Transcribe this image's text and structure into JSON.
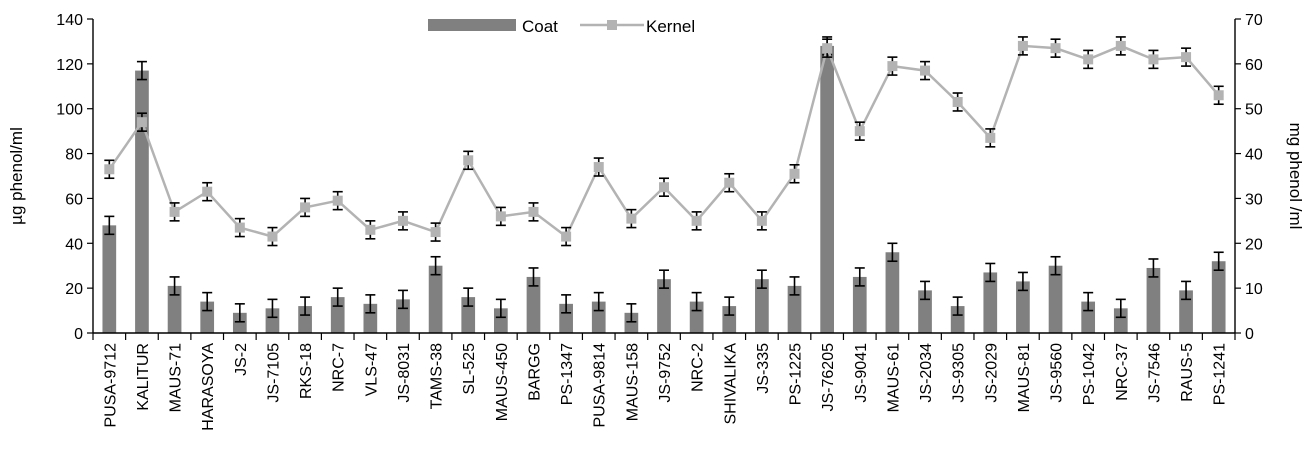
{
  "chart_data": {
    "type": "bar+line",
    "categories": [
      "PUSA-9712",
      "KALITUR",
      "MAUS-71",
      "HARASOYA",
      "JS-2",
      "JS-7105",
      "RKS-18",
      "NRC-7",
      "VLS-47",
      "JS-8031",
      "TAMS-38",
      "SL-525",
      "MAUS-450",
      "BARGG",
      "PS-1347",
      "PUSA-9814",
      "MAUS-158",
      "JS-9752",
      "NRC-2",
      "SHIVALIKA",
      "JS-335",
      "PS-1225",
      "JS-76205",
      "JS-9041",
      "MAUS-61",
      "JS-2034",
      "JS-9305",
      "JS-2029",
      "MAUS-81",
      "JS-9560",
      "PS-1042",
      "NRC-37",
      "JS-7546",
      "RAUS-5",
      "PS-1241"
    ],
    "series": [
      {
        "name": "Coat",
        "type": "bar",
        "axis": "left",
        "color": "#808080",
        "values": [
          48,
          117,
          21,
          14,
          9,
          11,
          12,
          16,
          13,
          15,
          30,
          16,
          11,
          25,
          13,
          14,
          9,
          24,
          14,
          12,
          24,
          21,
          128,
          25,
          36,
          19,
          12,
          27,
          23,
          30,
          14,
          11,
          29,
          19,
          32
        ],
        "errors": [
          4,
          4,
          4,
          4,
          4,
          4,
          4,
          4,
          4,
          4,
          4,
          4,
          4,
          4,
          4,
          4,
          4,
          4,
          4,
          4,
          4,
          4,
          4,
          4,
          4,
          4,
          4,
          4,
          4,
          4,
          4,
          4,
          4,
          4,
          4
        ]
      },
      {
        "name": "Kernel",
        "type": "line",
        "axis": "right",
        "color": "#b3b3b3",
        "marker": "square",
        "values": [
          36.5,
          47,
          27,
          31.5,
          23.5,
          21.5,
          28,
          29.5,
          23,
          25,
          22.5,
          38.5,
          26,
          27,
          21.5,
          37,
          25.5,
          32.5,
          25,
          33.5,
          25,
          35.5,
          63.5,
          45,
          59.5,
          58.5,
          51.5,
          43.5,
          64,
          63.5,
          61,
          64,
          61,
          61.5,
          53
        ],
        "errors": [
          2,
          2,
          2,
          2,
          2,
          2,
          2,
          2,
          2,
          2,
          2,
          2,
          2,
          2,
          2,
          2,
          2,
          2,
          2,
          2,
          2,
          2,
          2,
          2,
          2,
          2,
          2,
          2,
          2,
          2,
          2,
          2,
          2,
          2,
          2
        ]
      }
    ],
    "ylabel_left": "µg phenol/ml",
    "ylabel_right": "mg phenol /ml",
    "ylim_left": [
      0,
      140
    ],
    "ylim_right": [
      0,
      70
    ],
    "yticks_left": [
      "0",
      "20",
      "40",
      "60",
      "80",
      "100",
      "120",
      "140"
    ],
    "yticks_right": [
      "0",
      "10",
      "20",
      "30",
      "40",
      "50",
      "60",
      "70"
    ],
    "legend": {
      "placement": "top-center",
      "entries": [
        "Coat",
        "Kernel"
      ]
    },
    "grid": false
  }
}
